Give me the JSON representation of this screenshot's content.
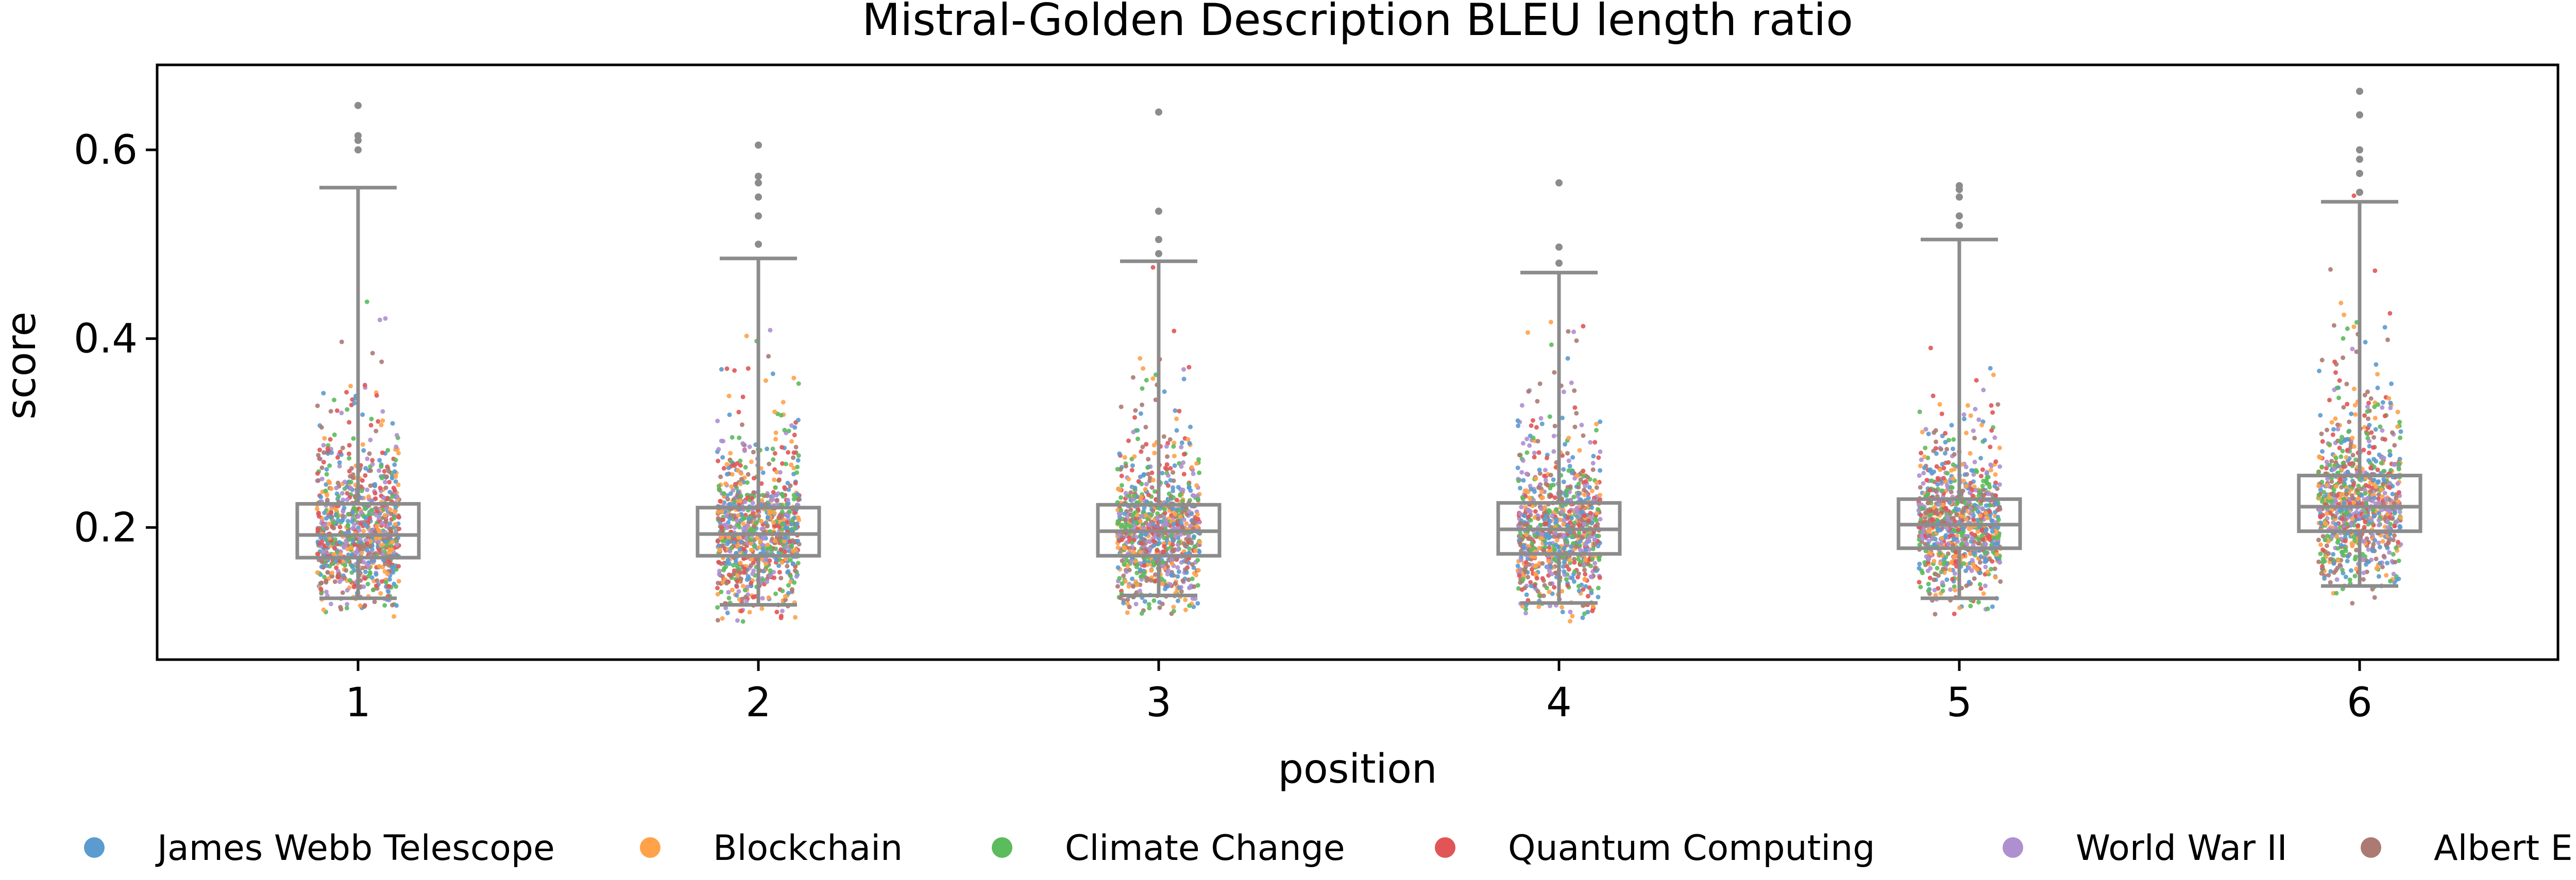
{
  "chart_data": {
    "type": "box-strip",
    "title": "Mistral-Golden Description BLEU length ratio",
    "xlabel": "position",
    "ylabel": "score",
    "categories": [
      "1",
      "2",
      "3",
      "4",
      "5",
      "6"
    ],
    "ylim": [
      0.06,
      0.69
    ],
    "yticks": [
      {
        "value": 0.2,
        "label": "0.2"
      },
      {
        "value": 0.4,
        "label": "0.4"
      },
      {
        "value": 0.6,
        "label": "0.6"
      }
    ],
    "grid": false,
    "legend_position": "bottom",
    "series": [
      {
        "name": "James Webb Telescope",
        "color": "#5B9BD0"
      },
      {
        "name": "Blockchain",
        "color": "#FFA24A"
      },
      {
        "name": "Climate Change",
        "color": "#5CBB5C"
      },
      {
        "name": "Quantum Computing",
        "color": "#E15556"
      },
      {
        "name": "World War II",
        "color": "#AE8FD0"
      },
      {
        "name": "Albert Einstein",
        "color": "#AC7A73"
      }
    ],
    "boxes": [
      {
        "position": "1",
        "whisker_low": 0.125,
        "q1": 0.168,
        "median": 0.192,
        "q3": 0.225,
        "whisker_high": 0.56,
        "outliers": [
          0.6,
          0.61,
          0.615,
          0.647
        ]
      },
      {
        "position": "2",
        "whisker_low": 0.118,
        "q1": 0.17,
        "median": 0.193,
        "q3": 0.221,
        "whisker_high": 0.485,
        "outliers": [
          0.5,
          0.53,
          0.55,
          0.565,
          0.572,
          0.605
        ]
      },
      {
        "position": "3",
        "whisker_low": 0.128,
        "q1": 0.17,
        "median": 0.196,
        "q3": 0.224,
        "whisker_high": 0.482,
        "outliers": [
          0.49,
          0.505,
          0.535,
          0.64
        ]
      },
      {
        "position": "4",
        "whisker_low": 0.12,
        "q1": 0.172,
        "median": 0.198,
        "q3": 0.226,
        "whisker_high": 0.47,
        "outliers": [
          0.48,
          0.497,
          0.565
        ]
      },
      {
        "position": "5",
        "whisker_low": 0.125,
        "q1": 0.178,
        "median": 0.203,
        "q3": 0.23,
        "whisker_high": 0.505,
        "outliers": [
          0.52,
          0.53,
          0.55,
          0.558,
          0.562
        ]
      },
      {
        "position": "6",
        "whisker_low": 0.138,
        "q1": 0.196,
        "median": 0.222,
        "q3": 0.255,
        "whisker_high": 0.545,
        "outliers": [
          0.555,
          0.575,
          0.59,
          0.6,
          0.637,
          0.662
        ]
      }
    ],
    "points_per_position": 900
  }
}
